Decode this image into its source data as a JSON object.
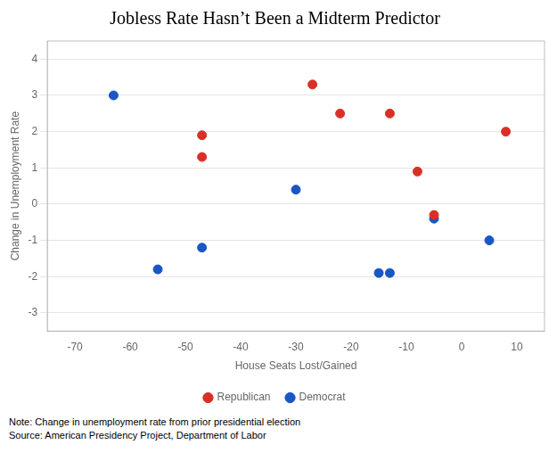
{
  "chart_data": {
    "type": "scatter",
    "title": "Jobless Rate Hasn’t Been a Midterm Predictor",
    "x_label": "House Seats Lost/Gained",
    "y_label": "Change in Unemployment Rate",
    "series": [
      {
        "name": "Republican",
        "color": "#d93025",
        "x": [
          -47,
          -47,
          -27,
          -22,
          -13,
          -8,
          -5,
          8
        ],
        "y": [
          1.9,
          1.3,
          3.3,
          2.5,
          2.5,
          0.9,
          -0.3,
          2.0
        ]
      },
      {
        "name": "Democrat",
        "color": "#1a56c4",
        "x": [
          -63,
          -55,
          -47,
          -30,
          -15,
          -13,
          -5,
          5
        ],
        "y": [
          3.0,
          -1.8,
          -1.2,
          0.4,
          -1.9,
          -1.9,
          -0.4,
          -1.0
        ]
      }
    ],
    "xlim": [
      -75,
      15
    ],
    "ylim": [
      -3.5,
      4.5
    ],
    "xticks": [
      -70,
      -60,
      -50,
      -40,
      -30,
      -20,
      -10,
      0,
      10
    ],
    "yticks": [
      -3,
      -2,
      -1,
      0,
      1,
      2,
      3,
      4
    ],
    "grid": "y",
    "legend": "bottom",
    "notes": [
      "Note: Change in unemployment rate from prior presidential election",
      "Source: American Presidency Project, Department of Labor"
    ]
  }
}
